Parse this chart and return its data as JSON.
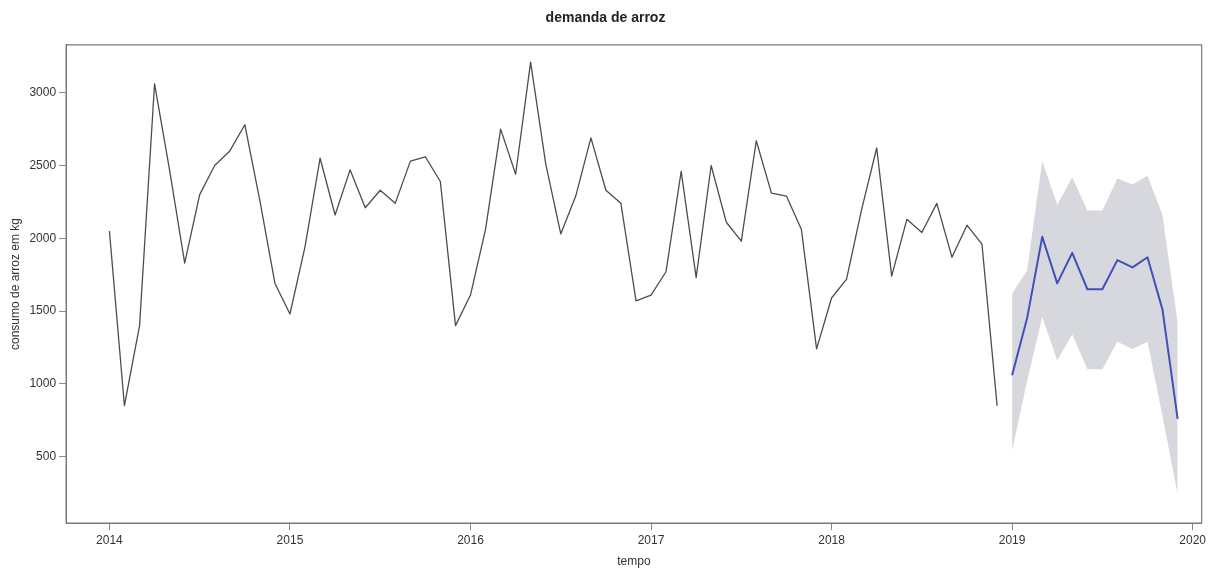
{
  "chart_data": {
    "type": "line",
    "title": "demanda de arroz",
    "xlabel": "tempo",
    "ylabel": "consumo de arroz em kg",
    "xlim": [
      2013.76,
      2020.05
    ],
    "xticks": [
      2014,
      2015,
      2016,
      2017,
      2018,
      2019,
      2020
    ],
    "ylim": [
      43,
      3329
    ],
    "yticks": [
      500,
      1000,
      1500,
      2000,
      2500,
      3000
    ],
    "grid": false,
    "legend": false,
    "marker": "none",
    "line_style": "solid",
    "series": [
      {
        "color": "#4d4d4d",
        "x": [
          2014,
          2014.083,
          2014.167,
          2014.25,
          2014.333,
          2014.417,
          2014.5,
          2014.583,
          2014.667,
          2014.75,
          2014.833,
          2014.917,
          2015,
          2015.083,
          2015.167,
          2015.25,
          2015.333,
          2015.417,
          2015.5,
          2015.583,
          2015.667,
          2015.75,
          2015.833,
          2015.917,
          2016,
          2016.083,
          2016.167,
          2016.25,
          2016.333,
          2016.417,
          2016.5,
          2016.583,
          2016.667,
          2016.75,
          2016.833,
          2016.917,
          2017,
          2017.083,
          2017.167,
          2017.25,
          2017.333,
          2017.417,
          2017.5,
          2017.583,
          2017.667,
          2017.75,
          2017.833,
          2017.917,
          2018,
          2018.083,
          2018.167,
          2018.25,
          2018.333,
          2018.417,
          2018.5,
          2018.583,
          2018.667,
          2018.75,
          2018.833,
          2018.917
        ],
        "values": [
          2050,
          850,
          1400,
          3060,
          2470,
          1830,
          2300,
          2500,
          2600,
          2780,
          2260,
          1690,
          1480,
          1940,
          2550,
          2160,
          2470,
          2210,
          2330,
          2240,
          2530,
          2560,
          2390,
          1400,
          1610,
          2060,
          2750,
          2440,
          3210,
          2510,
          2030,
          2290,
          2690,
          2330,
          2240,
          1570,
          1610,
          1770,
          2460,
          1730,
          2500,
          2110,
          1980,
          2670,
          2310,
          2290,
          2060,
          1240,
          1590,
          1720,
          2200,
          2620,
          1740,
          2130,
          2040,
          2240,
          1870,
          2090,
          1960,
          850
        ]
      },
      {
        "color": "#4150b8",
        "x": [
          2019,
          2019.083,
          2019.167,
          2019.25,
          2019.333,
          2019.417,
          2019.5,
          2019.583,
          2019.667,
          2019.75,
          2019.833,
          2019.917
        ],
        "values": [
          1060,
          1450,
          2010,
          1690,
          1900,
          1650,
          1650,
          1850,
          1800,
          1870,
          1510,
          760
        ],
        "lower": [
          540,
          1020,
          1460,
          1160,
          1340,
          1100,
          1100,
          1290,
          1240,
          1290,
          780,
          240
        ],
        "upper": [
          1620,
          1780,
          2530,
          2230,
          2420,
          2190,
          2190,
          2410,
          2370,
          2430,
          2160,
          1420
        ]
      }
    ]
  }
}
